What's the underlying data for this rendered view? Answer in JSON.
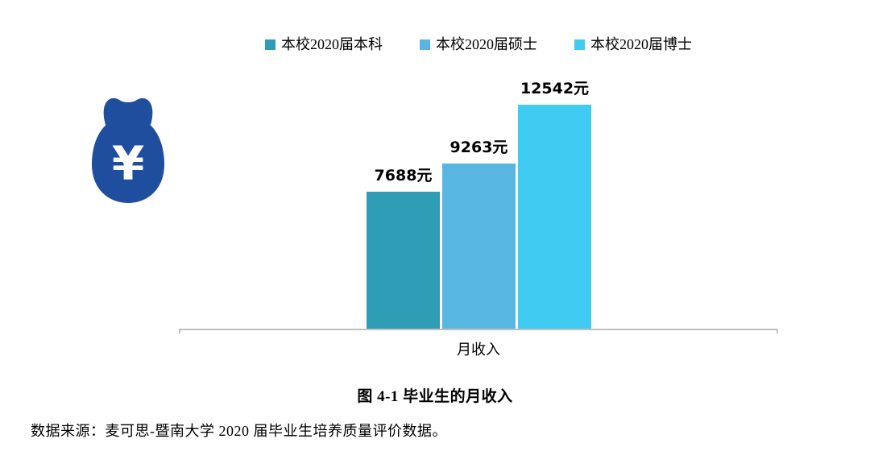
{
  "chart_data": {
    "type": "bar",
    "categories": [
      "月收入"
    ],
    "series": [
      {
        "name": "本校2020届本科",
        "value": 7688,
        "label": "7688元",
        "color": "#2e9db5"
      },
      {
        "name": "本校2020届硕士",
        "value": 9263,
        "label": "9263元",
        "color": "#57b7e2"
      },
      {
        "name": "本校2020届博士",
        "value": 12542,
        "label": "12542元",
        "color": "#40cbf2"
      }
    ],
    "title": "",
    "xlabel": "月收入",
    "ylabel": "",
    "legend_position": "top",
    "grid": false,
    "axis_color": "#bfbfbf"
  },
  "caption": "图 4-1 毕业生的月收入",
  "source": "数据来源：麦可思-暨南大学 2020 届毕业生培养质量评价数据。",
  "icons": {
    "money_bag_symbol": "¥",
    "money_bag_color": "#1f4e9f"
  }
}
